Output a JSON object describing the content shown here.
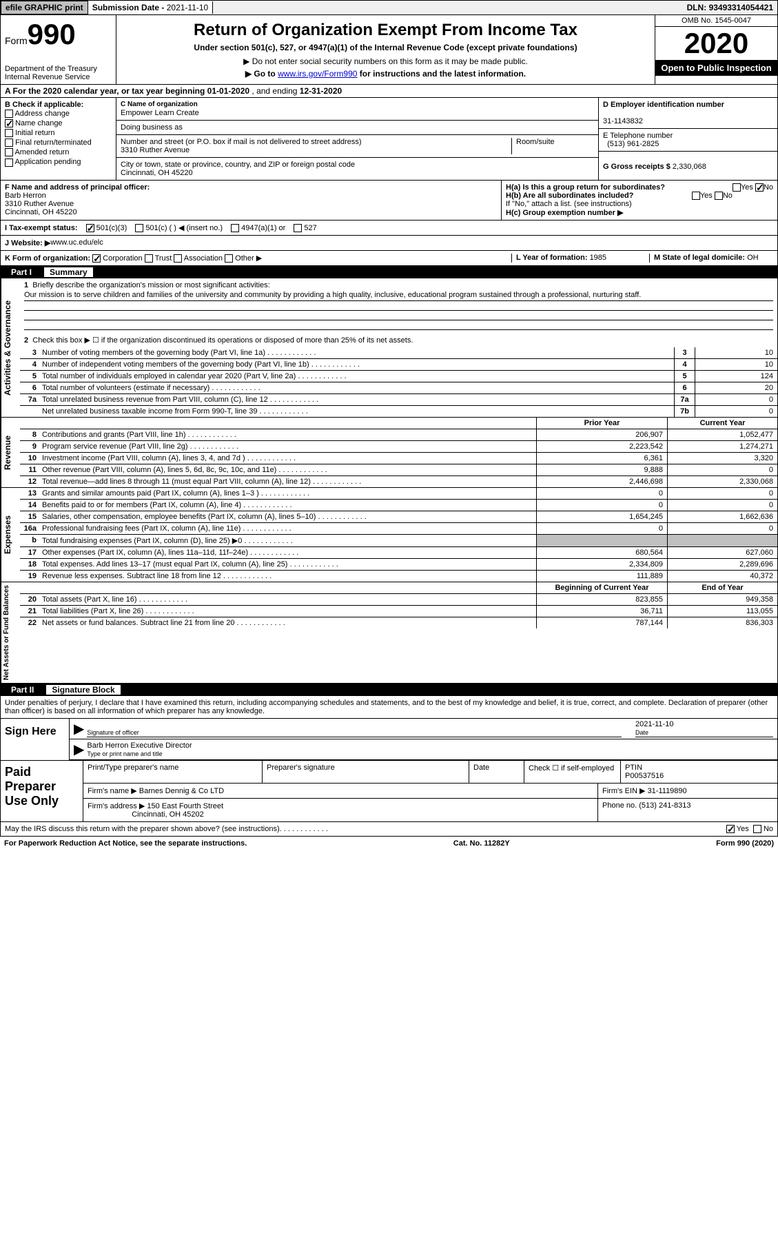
{
  "top": {
    "efile_btn": "efile GRAPHIC print",
    "sub_date_label": "Submission Date - ",
    "sub_date": "2021-11-10",
    "dln_label": "DLN: ",
    "dln": "93493314054421"
  },
  "header": {
    "form_label": "Form",
    "form_number": "990",
    "dept": "Department of the Treasury\nInternal Revenue Service",
    "title": "Return of Organization Exempt From Income Tax",
    "subtitle": "Under section 501(c), 527, or 4947(a)(1) of the Internal Revenue Code (except private foundations)",
    "note1": "▶ Do not enter social security numbers on this form as it may be made public.",
    "note2_prefix": "▶ Go to ",
    "note2_link": "www.irs.gov/Form990",
    "note2_suffix": " for instructions and the latest information.",
    "omb": "OMB No. 1545-0047",
    "year": "2020",
    "open": "Open to Public Inspection"
  },
  "period": {
    "label_a": "A For the 2020 calendar year, or tax year beginning ",
    "begin": "01-01-2020",
    "mid": " , and ending ",
    "end": "12-31-2020"
  },
  "box_b": {
    "label": "B Check if applicable:",
    "items": [
      {
        "label": "Address change",
        "checked": false
      },
      {
        "label": "Name change",
        "checked": true
      },
      {
        "label": "Initial return",
        "checked": false
      },
      {
        "label": "Final return/terminated",
        "checked": false
      },
      {
        "label": "Amended return",
        "checked": false
      },
      {
        "label": "Application pending",
        "checked": false
      }
    ]
  },
  "box_c": {
    "c_label": "C Name of organization",
    "org": "Empower Learn Create",
    "dba_label": "Doing business as",
    "dba": "",
    "addr_label": "Number and street (or P.O. box if mail is not delivered to street address)",
    "room_label": "Room/suite",
    "addr": "3310 Ruther Avenue",
    "city_label": "City or town, state or province, country, and ZIP or foreign postal code",
    "city": "Cincinnati, OH  45220"
  },
  "box_d": {
    "d_label": "D Employer identification number",
    "ein": "31-1143832",
    "e_label": "E Telephone number",
    "phone": "(513) 961-2825",
    "g_label": "G Gross receipts $ ",
    "g_val": "2,330,068"
  },
  "box_f": {
    "f_label": "F Name and address of principal officer:",
    "name": "Barb Herron",
    "addr1": "3310 Ruther Avenue",
    "addr2": "Cincinnati, OH  45220"
  },
  "box_h": {
    "ha_label": "H(a)  Is this a group return for subordinates?",
    "ha_yes": "Yes",
    "ha_no": "No",
    "ha_checked": "No",
    "hb_label": "H(b)  Are all subordinates included?",
    "hb_yes": "Yes",
    "hb_no": "No",
    "hb_note": "If \"No,\" attach a list. (see instructions)",
    "hc_label": "H(c)  Group exemption number ▶"
  },
  "row_i": {
    "label": "I  Tax-exempt status:",
    "opt1": "501(c)(3)",
    "opt1_checked": true,
    "opt2": "501(c) (  ) ◀ (insert no.)",
    "opt3": "4947(a)(1) or",
    "opt4": "527"
  },
  "row_j": {
    "label": "J  Website: ▶ ",
    "val": "www.uc.edu/elc"
  },
  "row_k": {
    "label": "K Form of organization:",
    "opts": [
      {
        "label": "Corporation",
        "checked": true
      },
      {
        "label": "Trust",
        "checked": false
      },
      {
        "label": "Association",
        "checked": false
      },
      {
        "label": "Other ▶",
        "checked": false
      }
    ],
    "l_label": "L Year of formation: ",
    "l_val": "1985",
    "m_label": "M State of legal domicile: ",
    "m_val": "OH"
  },
  "part1": {
    "part_no": "Part I",
    "part_title": "Summary",
    "q1_num": "1",
    "q1": "Briefly describe the organization's mission or most significant activities:",
    "mission": "Our mission is to serve children and families of the university and community by providing a high quality, inclusive, educational program sustained through a professional, nurturing staff.",
    "q2_num": "2",
    "q2": "Check this box ▶ ☐  if the organization discontinued its operations or disposed of more than 25% of its net assets.",
    "governance_lines": [
      {
        "num": "3",
        "text": "Number of voting members of the governing body (Part VI, line 1a)",
        "box": "3",
        "val": "10"
      },
      {
        "num": "4",
        "text": "Number of independent voting members of the governing body (Part VI, line 1b)",
        "box": "4",
        "val": "10"
      },
      {
        "num": "5",
        "text": "Total number of individuals employed in calendar year 2020 (Part V, line 2a)",
        "box": "5",
        "val": "124"
      },
      {
        "num": "6",
        "text": "Total number of volunteers (estimate if necessary)",
        "box": "6",
        "val": "20"
      },
      {
        "num": "7a",
        "text": "Total unrelated business revenue from Part VIII, column (C), line 12",
        "box": "7a",
        "val": "0"
      },
      {
        "num": "",
        "text": "Net unrelated business taxable income from Form 990-T, line 39",
        "box": "7b",
        "val": "0"
      }
    ],
    "col_headers": {
      "prior": "Prior Year",
      "current": "Current Year",
      "boy": "Beginning of Current Year",
      "eoy": "End of Year"
    },
    "revenue": [
      {
        "num": "b",
        "text": "",
        "prior": "",
        "current": "",
        "header": true
      },
      {
        "num": "8",
        "text": "Contributions and grants (Part VIII, line 1h)",
        "prior": "206,907",
        "current": "1,052,477"
      },
      {
        "num": "9",
        "text": "Program service revenue (Part VIII, line 2g)",
        "prior": "2,223,542",
        "current": "1,274,271"
      },
      {
        "num": "10",
        "text": "Investment income (Part VIII, column (A), lines 3, 4, and 7d )",
        "prior": "6,361",
        "current": "3,320"
      },
      {
        "num": "11",
        "text": "Other revenue (Part VIII, column (A), lines 5, 6d, 8c, 9c, 10c, and 11e)",
        "prior": "9,888",
        "current": "0"
      },
      {
        "num": "12",
        "text": "Total revenue—add lines 8 through 11 (must equal Part VIII, column (A), line 12)",
        "prior": "2,446,698",
        "current": "2,330,068"
      }
    ],
    "expenses": [
      {
        "num": "13",
        "text": "Grants and similar amounts paid (Part IX, column (A), lines 1–3 )",
        "prior": "0",
        "current": "0"
      },
      {
        "num": "14",
        "text": "Benefits paid to or for members (Part IX, column (A), line 4)",
        "prior": "0",
        "current": "0"
      },
      {
        "num": "15",
        "text": "Salaries, other compensation, employee benefits (Part IX, column (A), lines 5–10)",
        "prior": "1,654,245",
        "current": "1,662,636"
      },
      {
        "num": "16a",
        "text": "Professional fundraising fees (Part IX, column (A), line 11e)",
        "prior": "0",
        "current": "0"
      },
      {
        "num": "b",
        "text": "Total fundraising expenses (Part IX, column (D), line 25) ▶0",
        "prior": "GREY",
        "current": "GREY"
      },
      {
        "num": "17",
        "text": "Other expenses (Part IX, column (A), lines 11a–11d, 11f–24e)",
        "prior": "680,564",
        "current": "627,060"
      },
      {
        "num": "18",
        "text": "Total expenses. Add lines 13–17 (must equal Part IX, column (A), line 25)",
        "prior": "2,334,809",
        "current": "2,289,696"
      },
      {
        "num": "19",
        "text": "Revenue less expenses. Subtract line 18 from line 12",
        "prior": "111,889",
        "current": "40,372"
      }
    ],
    "netassets": [
      {
        "num": "20",
        "text": "Total assets (Part X, line 16)",
        "prior": "823,855",
        "current": "949,358"
      },
      {
        "num": "21",
        "text": "Total liabilities (Part X, line 26)",
        "prior": "36,711",
        "current": "113,055"
      },
      {
        "num": "22",
        "text": "Net assets or fund balances. Subtract line 21 from line 20",
        "prior": "787,144",
        "current": "836,303"
      }
    ],
    "vtabs": {
      "gov": "Activities & Governance",
      "rev": "Revenue",
      "exp": "Expenses",
      "net": "Net Assets or Fund Balances"
    }
  },
  "part2": {
    "part_no": "Part II",
    "part_title": "Signature Block",
    "penalty": "Under penalties of perjury, I declare that I have examined this return, including accompanying schedules and statements, and to the best of my knowledge and belief, it is true, correct, and complete. Declaration of preparer (other than officer) is based on all information of which preparer has any knowledge.",
    "sign_here": "Sign Here",
    "sig_officer": "Signature of officer",
    "sig_date": "Date",
    "date_val": "2021-11-10",
    "name_title": "Barb Herron  Executive Director",
    "name_title_label": "Type or print name and title",
    "paid_prep": "Paid Preparer Use Only",
    "prep_name_label": "Print/Type preparer's name",
    "prep_sig_label": "Preparer's signature",
    "prep_date_label": "Date",
    "check_if_label": "Check ☐ if self-employed",
    "ptin_label": "PTIN",
    "ptin": "P00537516",
    "firm_name_label": "Firm's name    ▶ ",
    "firm_name": "Barnes Dennig & Co LTD",
    "firm_ein_label": "Firm's EIN ▶ ",
    "firm_ein": "31-1119890",
    "firm_addr_label": "Firm's address ▶ ",
    "firm_addr": "150 East Fourth Street",
    "firm_city": "Cincinnati, OH  45202",
    "phone_label": "Phone no. ",
    "phone": "(513) 241-8313",
    "discuss": "May the IRS discuss this return with the preparer shown above? (see instructions)",
    "discuss_yes": "Yes",
    "discuss_no": "No",
    "discuss_checked": "Yes"
  },
  "footer": {
    "pra": "For Paperwork Reduction Act Notice, see the separate instructions.",
    "cat": "Cat. No. 11282Y",
    "form": "Form 990 (2020)"
  },
  "colors": {
    "black": "#000000",
    "grey_btn": "#c0c0c0",
    "grey_bg": "#f0f0f0",
    "link": "#0000cc"
  }
}
